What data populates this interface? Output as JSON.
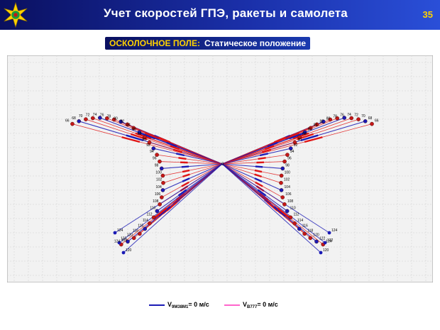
{
  "header": {
    "title": "Учет скоростей ГПЭ, ракеты и самолета",
    "page_number": "35"
  },
  "subtitle": {
    "label": "ОСКОЛОЧНОЕ ПОЛЕ:",
    "text": "Статическое положение"
  },
  "diagram": {
    "center_label": "0",
    "colors": {
      "blue": "#1a1ab5",
      "red": "#e01515",
      "pink": "#ff66cc",
      "grid": "#cfcfcf",
      "plot_bg": "#f2f2f2"
    },
    "fan_labels": [
      "66",
      "68",
      "70",
      "72",
      "74",
      "76",
      "78",
      "80",
      "82",
      "84",
      "86",
      "88",
      "90",
      "92",
      "94",
      "96",
      "98",
      "100",
      "102",
      "104",
      "106",
      "108",
      "110",
      "112",
      "114",
      "116",
      "118",
      "120",
      "122",
      "124"
    ]
  },
  "legend": [
    {
      "prefix": "V",
      "sub": "9М38М1",
      "suffix": "= 0 м/с",
      "color": "#1a1ab5"
    },
    {
      "prefix": "V",
      "sub": "B777",
      "suffix": "= 0 м/с",
      "color": "#ff66cc"
    }
  ]
}
